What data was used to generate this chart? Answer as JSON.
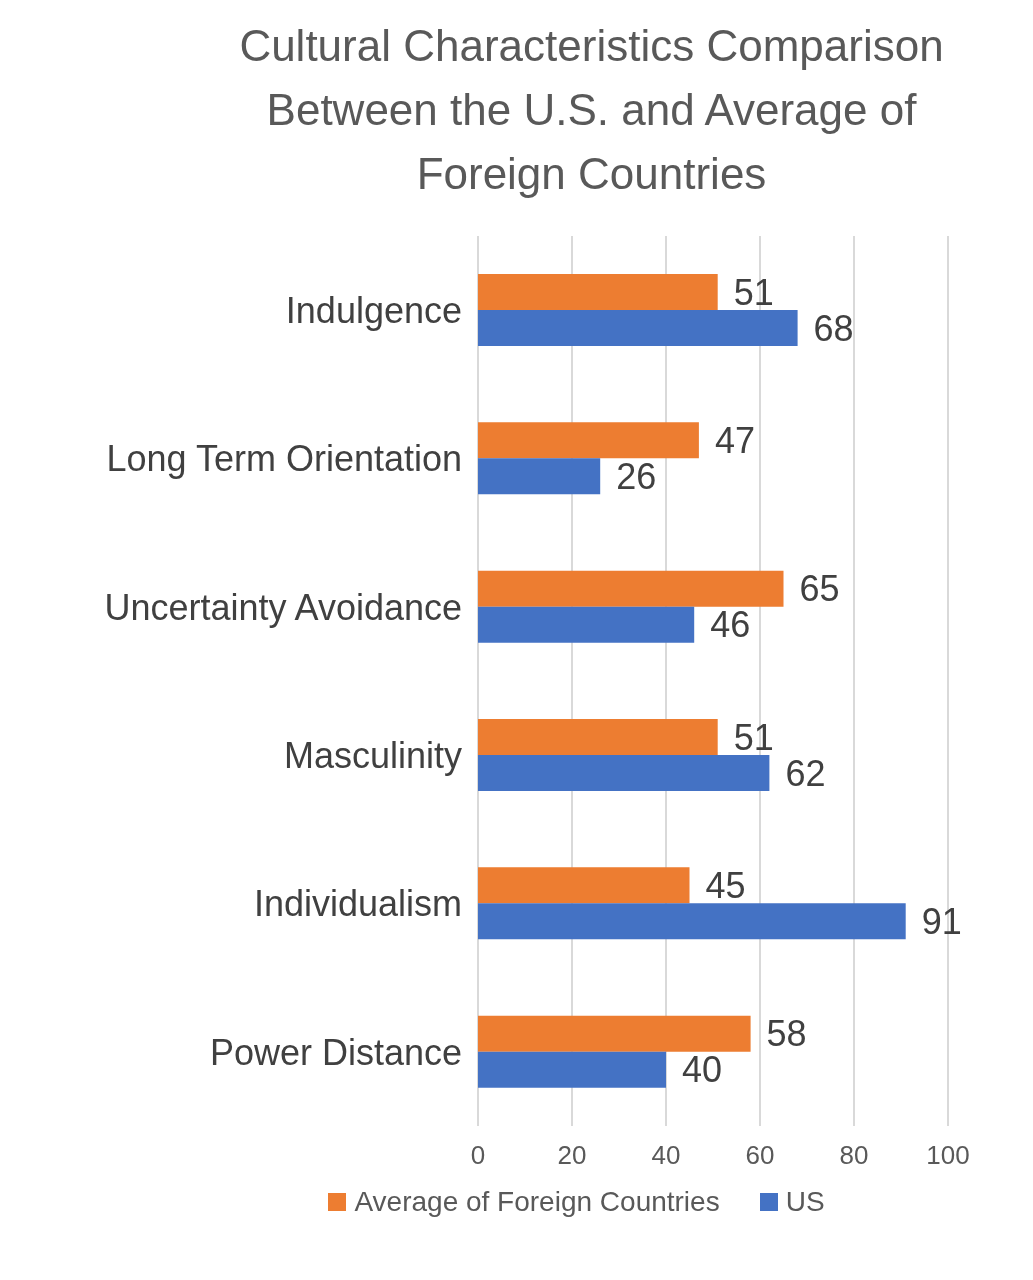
{
  "chart_data": {
    "type": "bar",
    "orientation": "horizontal",
    "title": "Cultural Characteristics Comparison Between the U.S. and Average of Foreign Countries",
    "categories": [
      "Indulgence",
      "Long Term Orientation",
      "Uncertainty Avoidance",
      "Masculinity",
      "Individualism",
      "Power Distance"
    ],
    "series": [
      {
        "name": "Average of Foreign Countries",
        "color": "#ed7d31",
        "values": [
          51,
          47,
          65,
          51,
          45,
          58
        ]
      },
      {
        "name": "US",
        "color": "#4472c4",
        "values": [
          68,
          26,
          46,
          62,
          91,
          40
        ]
      }
    ],
    "xlim": [
      0,
      100
    ],
    "xticks": [
      0,
      20,
      40,
      60,
      80,
      100
    ],
    "grid": "x",
    "data_labels": true,
    "legend": "bottom"
  }
}
